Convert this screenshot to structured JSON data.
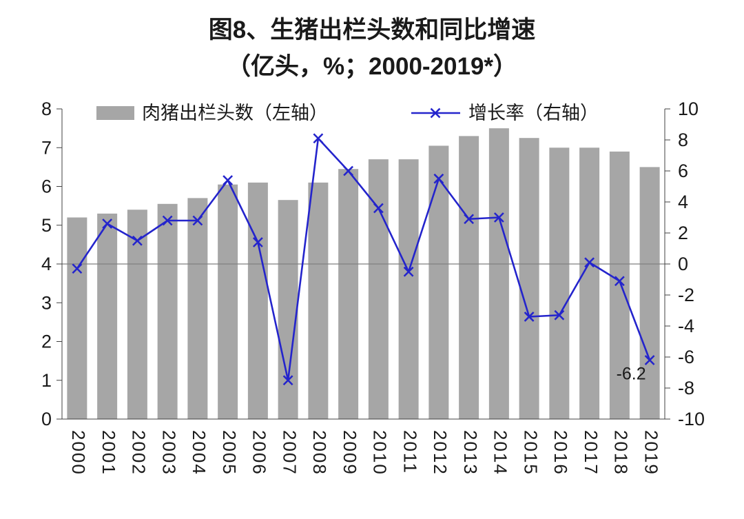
{
  "title": {
    "line1": "图8、生猪出栏头数和同比增速",
    "line2": "（亿头，%；2000-2019*）"
  },
  "chart_data": {
    "type": "bar+line combo",
    "categories": [
      "2000",
      "2001",
      "2002",
      "2003",
      "2004",
      "2005",
      "2006",
      "2007",
      "2008",
      "2009",
      "2010",
      "2011",
      "2012",
      "2013",
      "2014",
      "2015",
      "2016",
      "2017",
      "2018",
      "2019"
    ],
    "series": [
      {
        "name": "肉猪出栏头数（左轴）",
        "type": "bar",
        "axis": "left",
        "color": "#a6a6a6",
        "values": [
          5.2,
          5.3,
          5.4,
          5.55,
          5.7,
          6.05,
          6.1,
          5.65,
          6.1,
          6.45,
          6.7,
          6.7,
          7.05,
          7.3,
          7.5,
          7.25,
          7.0,
          7.0,
          6.9,
          6.5
        ]
      },
      {
        "name": "增长率（右轴）",
        "type": "line",
        "axis": "right",
        "color": "#2424cc",
        "marker": "x",
        "values": [
          -0.3,
          2.6,
          1.5,
          2.8,
          2.8,
          5.4,
          1.4,
          -7.5,
          8.1,
          6.0,
          3.6,
          -0.5,
          5.5,
          2.9,
          3.0,
          -3.4,
          -3.3,
          0.1,
          -1.1,
          -6.2
        ]
      }
    ],
    "left_axis": {
      "min": 0,
      "max": 8,
      "step": 1,
      "ticks": [
        "0",
        "1",
        "2",
        "3",
        "4",
        "5",
        "6",
        "7",
        "8"
      ]
    },
    "right_axis": {
      "min": -10,
      "max": 10,
      "step": 2,
      "ticks": [
        "-10",
        "-8",
        "-6",
        "-4",
        "-2",
        "0",
        "2",
        "4",
        "6",
        "8",
        "10"
      ]
    },
    "annotation": {
      "text": "-6.2",
      "series_index": 1,
      "point_index": 19
    },
    "legend_position": "top",
    "grid": "zero-line-only",
    "zero_line_color": "#7f7f7f",
    "axis_color": "#404040"
  }
}
